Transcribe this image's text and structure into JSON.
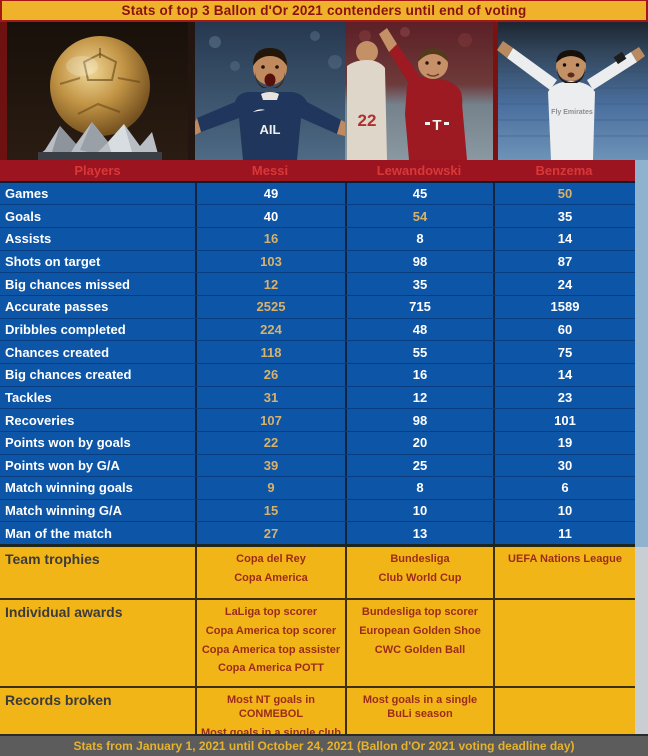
{
  "title": "Stats of top 3 Ballon d'Or 2021 contenders until end of voting",
  "footer": "Stats from January 1, 2021 until October 24, 2021 (Ballon d'Or 2021 voting deadline day)",
  "photos": {
    "trophy": {
      "name": "ballon-dor-trophy"
    },
    "messi": {
      "jersey_text": "AIL"
    },
    "lewandowski": {
      "jersey_text": "T",
      "side_player_number": "22"
    },
    "benzema": {
      "jersey_text": "Fly Emirates"
    }
  },
  "table": {
    "header": {
      "label": "Players",
      "players": [
        "Messi",
        "Lewandowski",
        "Benzema"
      ]
    },
    "stats": [
      {
        "label": "Games",
        "values": [
          "49",
          "45",
          "50"
        ],
        "highlight": 2
      },
      {
        "label": "Goals",
        "values": [
          "40",
          "54",
          "35"
        ],
        "highlight": 1
      },
      {
        "label": "Assists",
        "values": [
          "16",
          "8",
          "14"
        ],
        "highlight": 0
      },
      {
        "label": "Shots on target",
        "values": [
          "103",
          "98",
          "87"
        ],
        "highlight": 0
      },
      {
        "label": "Big chances missed",
        "values": [
          "12",
          "35",
          "24"
        ],
        "highlight": 0
      },
      {
        "label": "Accurate passes",
        "values": [
          "2525",
          "715",
          "1589"
        ],
        "highlight": 0
      },
      {
        "label": "Dribbles completed",
        "values": [
          "224",
          "48",
          "60"
        ],
        "highlight": 0
      },
      {
        "label": "Chances created",
        "values": [
          "118",
          "55",
          "75"
        ],
        "highlight": 0
      },
      {
        "label": "Big chances created",
        "values": [
          "26",
          "16",
          "14"
        ],
        "highlight": 0
      },
      {
        "label": "Tackles",
        "values": [
          "31",
          "12",
          "23"
        ],
        "highlight": 0
      },
      {
        "label": "Recoveries",
        "values": [
          "107",
          "98",
          "101"
        ],
        "highlight": 0
      },
      {
        "label": "Points won by goals",
        "values": [
          "22",
          "20",
          "19"
        ],
        "highlight": 0
      },
      {
        "label": "Points won by G/A",
        "values": [
          "39",
          "25",
          "30"
        ],
        "highlight": 0
      },
      {
        "label": "Match winning goals",
        "values": [
          "9",
          "8",
          "6"
        ],
        "highlight": 0
      },
      {
        "label": "Match winning G/A",
        "values": [
          "15",
          "10",
          "10"
        ],
        "highlight": 0
      },
      {
        "label": "Man of the match",
        "values": [
          "27",
          "13",
          "11"
        ],
        "highlight": 0
      }
    ],
    "sections": [
      {
        "label": "Team trophies",
        "cells": [
          [
            "Copa del Rey",
            "Copa America"
          ],
          [
            "Bundesliga",
            "Club World Cup"
          ],
          [
            "UEFA Nations League"
          ]
        ]
      },
      {
        "label": "Individual awards",
        "cells": [
          [
            "LaLiga top scorer",
            "Copa America top scorer",
            "Copa America top assister",
            "Copa America POTT"
          ],
          [
            "Bundesliga top scorer",
            "European Golden Shoe",
            "CWC Golden Ball"
          ],
          []
        ]
      },
      {
        "label": "Records broken",
        "cells": [
          [
            "Most NT goals in CONMEBOL",
            "Most goals in a single club"
          ],
          [
            "Most goals in a single BuLi season"
          ],
          []
        ]
      }
    ]
  },
  "colors": {
    "title_bg": "#efb32b",
    "title_text": "#8a1111",
    "title_border": "#a51616",
    "header_bg": "#9c1420",
    "header_text": "#d83838",
    "row_bg": "#0d55a7",
    "row_text": "#ffffff",
    "highlight_text": "#d8b26a",
    "section_bg": "#f2b517",
    "section_label_text": "#3b3b3b",
    "section_value_text": "#9c2c1a",
    "footer_bg": "#5c5c5c",
    "footer_text": "#e8b32a"
  }
}
